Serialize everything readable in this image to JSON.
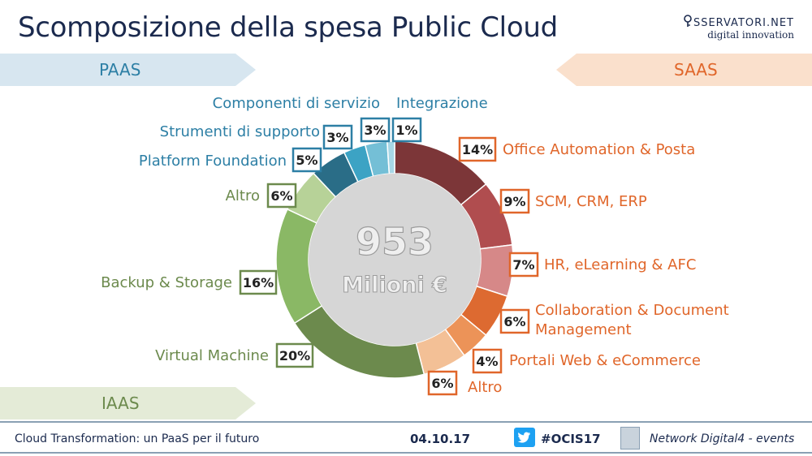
{
  "title": "Scomposizione della spesa Public Cloud",
  "logo": {
    "line1": "SSERVATORI.NET",
    "line2": "digital innovation"
  },
  "banners": {
    "paas": "PAAS",
    "saas": "SAAS",
    "iaas": "IAAS"
  },
  "chart_data": {
    "type": "pie",
    "center_value": "953",
    "center_unit": "Milioni €",
    "slices": [
      {
        "label": "Office Automation & Posta",
        "value": 14,
        "pct": "14%",
        "group": "SAAS",
        "color": "#7c3638"
      },
      {
        "label": "SCM, CRM, ERP",
        "value": 9,
        "pct": "9%",
        "group": "SAAS",
        "color": "#b04d4f"
      },
      {
        "label": "HR, eLearning & AFC",
        "value": 7,
        "pct": "7%",
        "group": "SAAS",
        "color": "#d68888"
      },
      {
        "label": "Collaboration & Document Management",
        "value": 6,
        "pct": "6%",
        "group": "SAAS",
        "color": "#dd6a31"
      },
      {
        "label": "Portali Web & eCommerce",
        "value": 4,
        "pct": "4%",
        "group": "SAAS",
        "color": "#ec9358"
      },
      {
        "label": "Altro",
        "value": 6,
        "pct": "6%",
        "group": "SAAS",
        "color": "#f3c096"
      },
      {
        "label": "Virtual Machine",
        "value": 20,
        "pct": "20%",
        "group": "IAAS",
        "color": "#6c8a4d"
      },
      {
        "label": "Backup & Storage",
        "value": 16,
        "pct": "16%",
        "group": "IAAS",
        "color": "#8ab865"
      },
      {
        "label": "Altro",
        "value": 6,
        "pct": "6%",
        "group": "IAAS",
        "color": "#b7d298"
      },
      {
        "label": "Platform Foundation",
        "value": 5,
        "pct": "5%",
        "group": "PAAS",
        "color": "#2a6d87"
      },
      {
        "label": "Strumenti di supporto",
        "value": 3,
        "pct": "3%",
        "group": "PAAS",
        "color": "#3ca3c4"
      },
      {
        "label": "Componenti di servizio",
        "value": 3,
        "pct": "3%",
        "group": "PAAS",
        "color": "#74bfd6"
      },
      {
        "label": "Integrazione",
        "value": 1,
        "pct": "1%",
        "group": "PAAS",
        "color": "#a7d7e6"
      }
    ]
  },
  "colors": {
    "saas_text": "#e0662a",
    "iaas_text": "#6c8a4d",
    "paas_text": "#2d7fa5"
  },
  "footer": {
    "left": "Cloud Transformation: un PaaS per il futuro",
    "date": "04.10.17",
    "hashtag": "#OCIS17",
    "network": "Network Digital4 - events",
    "twitter_icon": "twitter-icon",
    "network_icon": "network-digital4-icon"
  }
}
